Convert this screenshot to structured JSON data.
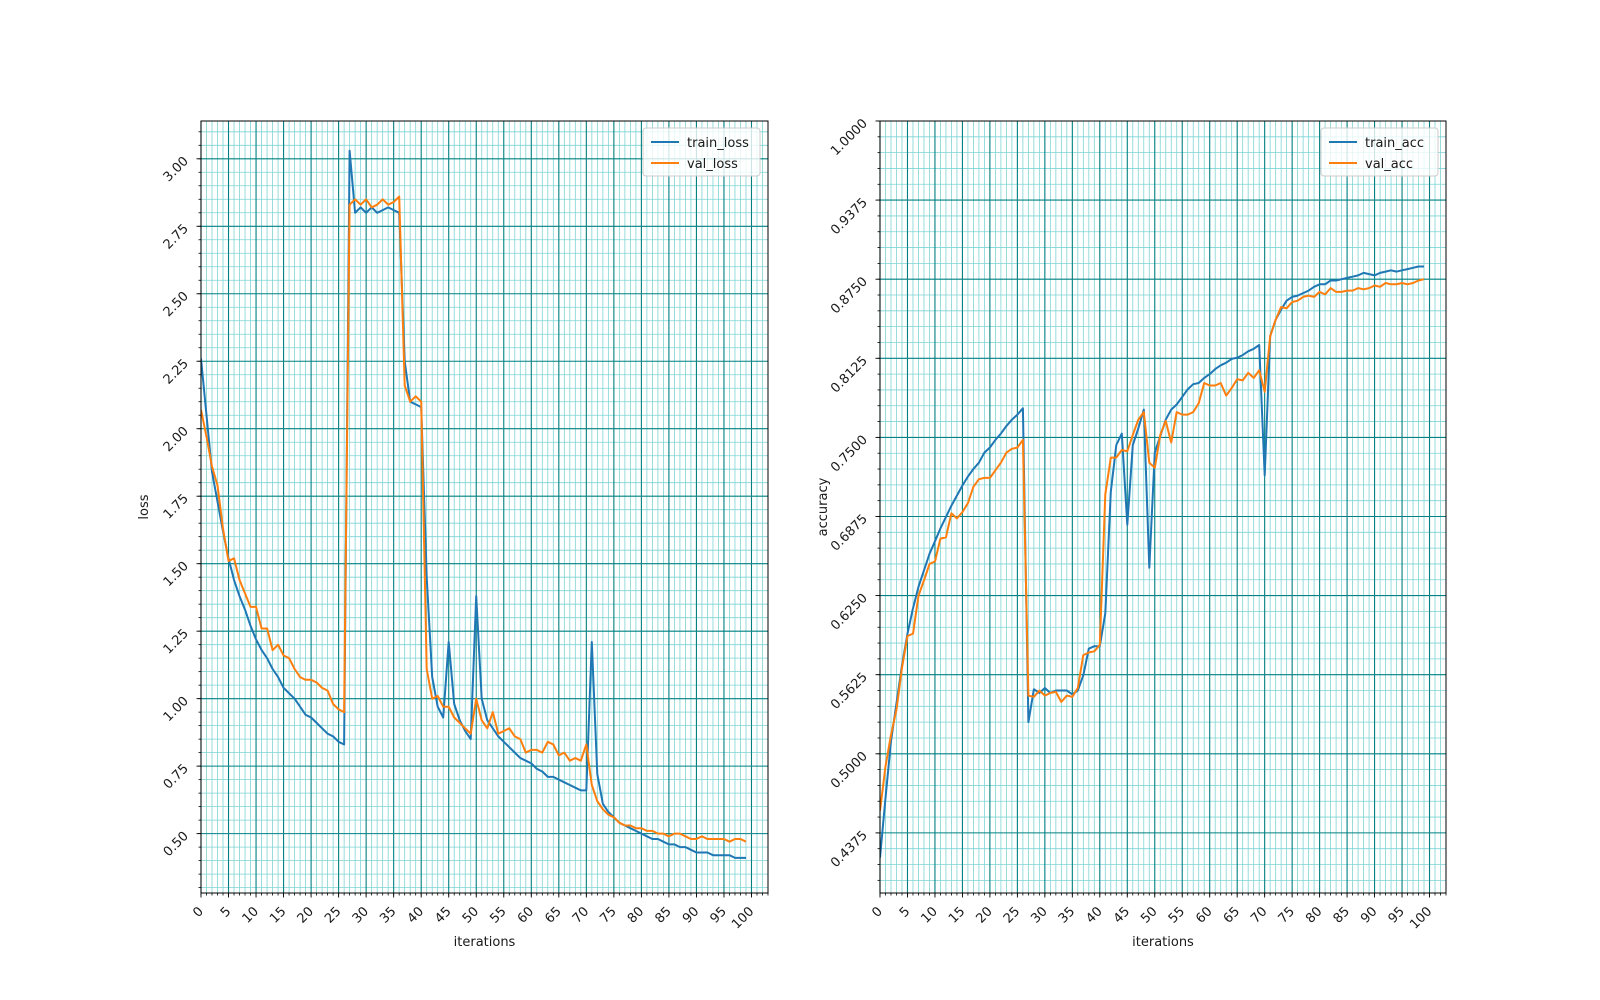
{
  "colors": {
    "train": "#1f77b4",
    "val": "#ff7f0e",
    "major_grid": "#008080",
    "minor_grid": "#7fd4d4"
  },
  "chart_data": [
    {
      "type": "line",
      "xlabel": "iterations",
      "ylabel": "loss",
      "xlim": [
        0,
        103
      ],
      "ylim": [
        0.28,
        3.14
      ],
      "xticks": [
        "0",
        "5",
        "10",
        "15",
        "20",
        "25",
        "30",
        "35",
        "40",
        "45",
        "50",
        "55",
        "60",
        "65",
        "70",
        "75",
        "80",
        "85",
        "90",
        "95",
        "100"
      ],
      "yticks": [
        "0.50",
        "0.75",
        "1.00",
        "1.25",
        "1.50",
        "1.75",
        "2.00",
        "2.25",
        "2.50",
        "2.75",
        "3.00"
      ],
      "grid": true,
      "legend": "top-right",
      "series": [
        {
          "name": "train_loss",
          "color": "#1f77b4",
          "x": [
            0,
            1,
            2,
            3,
            4,
            5,
            6,
            7,
            8,
            9,
            10,
            11,
            12,
            13,
            14,
            15,
            16,
            17,
            18,
            19,
            20,
            21,
            22,
            23,
            24,
            25,
            26,
            27,
            28,
            29,
            30,
            31,
            32,
            33,
            34,
            35,
            36,
            37,
            38,
            39,
            40,
            41,
            42,
            43,
            44,
            45,
            46,
            47,
            48,
            49,
            50,
            51,
            52,
            53,
            54,
            55,
            56,
            57,
            58,
            59,
            60,
            61,
            62,
            63,
            64,
            65,
            66,
            67,
            68,
            69,
            70,
            71,
            72,
            73,
            74,
            75,
            76,
            77,
            78,
            79,
            80,
            81,
            82,
            83,
            84,
            85,
            86,
            87,
            88,
            89,
            90,
            91,
            92,
            93,
            94,
            95,
            96,
            97,
            98,
            99
          ],
          "y": [
            2.26,
            2.05,
            1.84,
            1.73,
            1.62,
            1.52,
            1.44,
            1.38,
            1.33,
            1.27,
            1.22,
            1.18,
            1.15,
            1.11,
            1.08,
            1.04,
            1.02,
            1.0,
            0.97,
            0.94,
            0.93,
            0.91,
            0.89,
            0.87,
            0.86,
            0.84,
            0.83,
            3.03,
            2.8,
            2.82,
            2.8,
            2.82,
            2.8,
            2.81,
            2.82,
            2.81,
            2.8,
            2.25,
            2.1,
            2.09,
            2.08,
            1.45,
            1.08,
            0.97,
            0.93,
            1.21,
            0.98,
            0.92,
            0.88,
            0.85,
            1.38,
            1.0,
            0.92,
            0.89,
            0.86,
            0.84,
            0.82,
            0.8,
            0.78,
            0.77,
            0.76,
            0.74,
            0.73,
            0.71,
            0.71,
            0.7,
            0.69,
            0.68,
            0.67,
            0.66,
            0.66,
            1.21,
            0.72,
            0.61,
            0.58,
            0.56,
            0.54,
            0.53,
            0.52,
            0.51,
            0.5,
            0.49,
            0.48,
            0.48,
            0.47,
            0.46,
            0.46,
            0.45,
            0.45,
            0.44,
            0.43,
            0.43,
            0.43,
            0.42,
            0.42,
            0.42,
            0.42,
            0.41,
            0.41,
            0.41
          ]
        },
        {
          "name": "val_loss",
          "color": "#ff7f0e",
          "x": [
            0,
            1,
            2,
            3,
            4,
            5,
            6,
            7,
            8,
            9,
            10,
            11,
            12,
            13,
            14,
            15,
            16,
            17,
            18,
            19,
            20,
            21,
            22,
            23,
            24,
            25,
            26,
            27,
            28,
            29,
            30,
            31,
            32,
            33,
            34,
            35,
            36,
            37,
            38,
            39,
            40,
            41,
            42,
            43,
            44,
            45,
            46,
            47,
            48,
            49,
            50,
            51,
            52,
            53,
            54,
            55,
            56,
            57,
            58,
            59,
            60,
            61,
            62,
            63,
            64,
            65,
            66,
            67,
            68,
            69,
            70,
            71,
            72,
            73,
            74,
            75,
            76,
            77,
            78,
            79,
            80,
            81,
            82,
            83,
            84,
            85,
            86,
            87,
            88,
            89,
            90,
            91,
            92,
            93,
            94,
            95,
            96,
            97,
            98,
            99
          ],
          "y": [
            2.07,
            1.97,
            1.86,
            1.79,
            1.63,
            1.51,
            1.52,
            1.44,
            1.39,
            1.34,
            1.34,
            1.26,
            1.26,
            1.18,
            1.2,
            1.16,
            1.15,
            1.11,
            1.08,
            1.07,
            1.07,
            1.06,
            1.04,
            1.03,
            0.98,
            0.96,
            0.95,
            2.83,
            2.85,
            2.83,
            2.85,
            2.82,
            2.83,
            2.85,
            2.83,
            2.84,
            2.86,
            2.16,
            2.1,
            2.12,
            2.1,
            1.11,
            1.0,
            1.01,
            0.97,
            0.97,
            0.93,
            0.91,
            0.89,
            0.87,
            1.0,
            0.92,
            0.89,
            0.95,
            0.87,
            0.88,
            0.89,
            0.86,
            0.85,
            0.8,
            0.81,
            0.81,
            0.8,
            0.84,
            0.83,
            0.79,
            0.8,
            0.77,
            0.78,
            0.77,
            0.83,
            0.68,
            0.62,
            0.59,
            0.57,
            0.56,
            0.54,
            0.53,
            0.53,
            0.52,
            0.52,
            0.51,
            0.51,
            0.5,
            0.5,
            0.49,
            0.5,
            0.5,
            0.49,
            0.48,
            0.48,
            0.49,
            0.48,
            0.48,
            0.48,
            0.48,
            0.47,
            0.48,
            0.48,
            0.47
          ]
        }
      ]
    },
    {
      "type": "line",
      "xlabel": "iterations",
      "ylabel": "accuracy",
      "xlim": [
        0,
        103
      ],
      "ylim": [
        0.39,
        1.0
      ],
      "xticks": [
        "0",
        "5",
        "10",
        "15",
        "20",
        "25",
        "30",
        "35",
        "40",
        "45",
        "50",
        "55",
        "60",
        "65",
        "70",
        "75",
        "80",
        "85",
        "90",
        "95",
        "100"
      ],
      "yticks": [
        "0.4375",
        "0.5000",
        "0.5625",
        "0.6250",
        "0.6875",
        "0.7500",
        "0.8125",
        "0.8750",
        "0.9375",
        "1.0000"
      ],
      "grid": true,
      "legend": "top-right",
      "series": [
        {
          "name": "train_acc",
          "color": "#1f77b4",
          "x": [
            0,
            1,
            2,
            3,
            4,
            5,
            6,
            7,
            8,
            9,
            10,
            11,
            12,
            13,
            14,
            15,
            16,
            17,
            18,
            19,
            20,
            21,
            22,
            23,
            24,
            25,
            26,
            27,
            28,
            29,
            30,
            31,
            32,
            33,
            34,
            35,
            36,
            37,
            38,
            39,
            40,
            41,
            42,
            43,
            44,
            45,
            46,
            47,
            48,
            49,
            50,
            51,
            52,
            53,
            54,
            55,
            56,
            57,
            58,
            59,
            60,
            61,
            62,
            63,
            64,
            65,
            66,
            67,
            68,
            69,
            70,
            71,
            72,
            73,
            74,
            75,
            76,
            77,
            78,
            79,
            80,
            81,
            82,
            83,
            84,
            85,
            86,
            87,
            88,
            89,
            90,
            91,
            92,
            93,
            94,
            95,
            96,
            97,
            98,
            99
          ],
          "y": [
            0.418,
            0.465,
            0.51,
            0.54,
            0.57,
            0.595,
            0.615,
            0.632,
            0.645,
            0.658,
            0.668,
            0.678,
            0.687,
            0.696,
            0.704,
            0.712,
            0.719,
            0.725,
            0.73,
            0.738,
            0.742,
            0.748,
            0.753,
            0.759,
            0.764,
            0.768,
            0.773,
            0.525,
            0.551,
            0.548,
            0.552,
            0.548,
            0.55,
            0.55,
            0.55,
            0.547,
            0.55,
            0.562,
            0.583,
            0.585,
            0.585,
            0.611,
            0.707,
            0.744,
            0.753,
            0.681,
            0.744,
            0.757,
            0.772,
            0.647,
            0.738,
            0.751,
            0.764,
            0.772,
            0.776,
            0.782,
            0.788,
            0.792,
            0.793,
            0.797,
            0.8,
            0.804,
            0.807,
            0.809,
            0.812,
            0.813,
            0.815,
            0.818,
            0.82,
            0.823,
            0.72,
            0.83,
            0.843,
            0.851,
            0.858,
            0.861,
            0.862,
            0.864,
            0.866,
            0.869,
            0.871,
            0.871,
            0.874,
            0.874,
            0.875,
            0.876,
            0.877,
            0.878,
            0.88,
            0.879,
            0.878,
            0.88,
            0.881,
            0.882,
            0.881,
            0.882,
            0.883,
            0.884,
            0.885,
            0.885
          ]
        },
        {
          "name": "val_acc",
          "color": "#ff7f0e",
          "x": [
            0,
            1,
            2,
            3,
            4,
            5,
            6,
            7,
            8,
            9,
            10,
            11,
            12,
            13,
            14,
            15,
            16,
            17,
            18,
            19,
            20,
            21,
            22,
            23,
            24,
            25,
            26,
            27,
            28,
            29,
            30,
            31,
            32,
            33,
            34,
            35,
            36,
            37,
            38,
            39,
            40,
            41,
            42,
            43,
            44,
            45,
            46,
            47,
            48,
            49,
            50,
            51,
            52,
            53,
            54,
            55,
            56,
            57,
            58,
            59,
            60,
            61,
            62,
            63,
            64,
            65,
            66,
            67,
            68,
            69,
            70,
            71,
            72,
            73,
            74,
            75,
            76,
            77,
            78,
            79,
            80,
            81,
            82,
            83,
            84,
            85,
            86,
            87,
            88,
            89,
            90,
            91,
            92,
            93,
            94,
            95,
            96,
            97,
            98,
            99
          ],
          "y": [
            0.455,
            0.49,
            0.515,
            0.535,
            0.568,
            0.593,
            0.595,
            0.625,
            0.637,
            0.65,
            0.652,
            0.67,
            0.671,
            0.69,
            0.686,
            0.691,
            0.698,
            0.711,
            0.717,
            0.718,
            0.718,
            0.724,
            0.73,
            0.738,
            0.741,
            0.742,
            0.748,
            0.546,
            0.545,
            0.55,
            0.546,
            0.548,
            0.549,
            0.541,
            0.546,
            0.545,
            0.552,
            0.578,
            0.58,
            0.581,
            0.586,
            0.705,
            0.734,
            0.734,
            0.74,
            0.739,
            0.752,
            0.764,
            0.77,
            0.73,
            0.726,
            0.752,
            0.763,
            0.746,
            0.77,
            0.768,
            0.768,
            0.77,
            0.777,
            0.793,
            0.791,
            0.791,
            0.793,
            0.783,
            0.789,
            0.796,
            0.795,
            0.801,
            0.797,
            0.803,
            0.786,
            0.83,
            0.843,
            0.853,
            0.852,
            0.857,
            0.858,
            0.861,
            0.862,
            0.861,
            0.865,
            0.863,
            0.868,
            0.865,
            0.865,
            0.866,
            0.866,
            0.868,
            0.867,
            0.868,
            0.87,
            0.869,
            0.872,
            0.871,
            0.871,
            0.872,
            0.871,
            0.872,
            0.874,
            0.875
          ]
        }
      ]
    }
  ]
}
